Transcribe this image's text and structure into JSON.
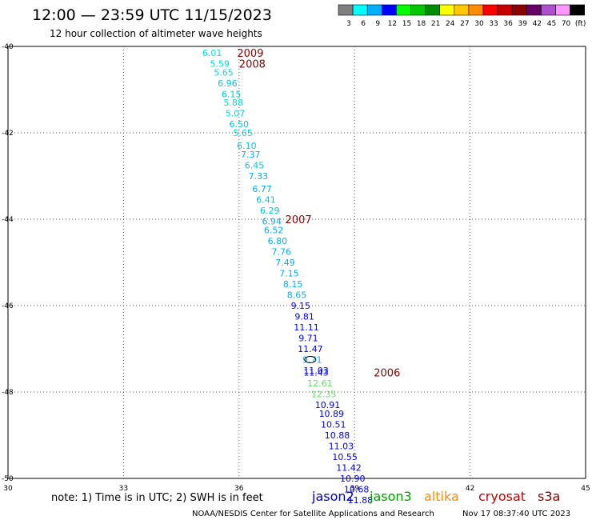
{
  "header": {
    "title": "12:00 — 23:59 UTC 11/15/2023",
    "subtitle": "12 hour collection of altimeter wave heights"
  },
  "colorbar": {
    "colors": [
      "#7f7f7f",
      "#00ffff",
      "#00b0ff",
      "#0000ff",
      "#00ff00",
      "#00c800",
      "#008c00",
      "#ffff00",
      "#ffc800",
      "#ff8c00",
      "#ff0000",
      "#c80000",
      "#8c0000",
      "#660066",
      "#b04ed0",
      "#ff96ff",
      "#000000"
    ],
    "labels": [
      "3",
      "6",
      "9",
      "12",
      "15",
      "18",
      "21",
      "24",
      "27",
      "30",
      "33",
      "36",
      "39",
      "42",
      "45",
      "70",
      "(ft)"
    ]
  },
  "footer": {
    "note": "note: 1) Time is in UTC; 2) SWH is in feet",
    "credit": "NOAA/NESDIS Center for Satellite Applications and Research",
    "generated": "Nov 17 08:37:40 UTC 2023"
  },
  "satellites": [
    {
      "name": "jason2",
      "color": "#0000c8"
    },
    {
      "name": "jason3",
      "color": "#00a000"
    },
    {
      "name": "altika",
      "color": "#ff8c00"
    },
    {
      "name": "cryosat",
      "color": "#c80000"
    },
    {
      "name": "s3a",
      "color": "#8c0000"
    }
  ],
  "chart_data": {
    "type": "scatter",
    "title": "12:00 — 23:59 UTC 11/15/2023",
    "xlim": [
      30,
      45
    ],
    "ylim": [
      -50,
      -40
    ],
    "x_ticks": [
      "30",
      "33",
      "36",
      "39",
      "42",
      "45"
    ],
    "y_ticks": [
      "-40",
      "-42",
      "-44",
      "-46",
      "-48",
      "-50"
    ],
    "grid": true,
    "units": "ft",
    "points": [
      {
        "lon": 35.3,
        "lat": -40.15,
        "value": "6.01",
        "color": "#00e0e0"
      },
      {
        "lon": 35.5,
        "lat": -40.4,
        "value": "5.59",
        "color": "#00e0e0"
      },
      {
        "lon": 35.6,
        "lat": -40.6,
        "value": "5.65",
        "color": "#00e0e0"
      },
      {
        "lon": 35.7,
        "lat": -40.85,
        "value": "6.96",
        "color": "#00c8e0"
      },
      {
        "lon": 35.8,
        "lat": -41.1,
        "value": "6.15",
        "color": "#00c8e0"
      },
      {
        "lon": 35.85,
        "lat": -41.3,
        "value": "5.88",
        "color": "#00e0e0"
      },
      {
        "lon": 35.9,
        "lat": -41.55,
        "value": "5.07",
        "color": "#00e0e0"
      },
      {
        "lon": 36.0,
        "lat": -41.8,
        "value": "6.50",
        "color": "#00c8e0"
      },
      {
        "lon": 36.1,
        "lat": -42.0,
        "value": "5.65",
        "color": "#00e0e0"
      },
      {
        "lon": 36.2,
        "lat": -42.3,
        "value": "6.10",
        "color": "#00c8e0"
      },
      {
        "lon": 36.3,
        "lat": -42.5,
        "value": "7.37",
        "color": "#00b0ff"
      },
      {
        "lon": 36.4,
        "lat": -42.75,
        "value": "6.45",
        "color": "#00c8e0"
      },
      {
        "lon": 36.5,
        "lat": -43.0,
        "value": "7.33",
        "color": "#00b0ff"
      },
      {
        "lon": 36.6,
        "lat": -43.3,
        "value": "6.77",
        "color": "#00b0ff"
      },
      {
        "lon": 36.7,
        "lat": -43.55,
        "value": "6.41",
        "color": "#00c8e0"
      },
      {
        "lon": 36.8,
        "lat": -43.8,
        "value": "6.29",
        "color": "#00c8e0"
      },
      {
        "lon": 36.85,
        "lat": -44.05,
        "value": "6.94",
        "color": "#00b0ff"
      },
      {
        "lon": 36.9,
        "lat": -44.25,
        "value": "6.52",
        "color": "#00b0ff"
      },
      {
        "lon": 37.0,
        "lat": -44.5,
        "value": "6.80",
        "color": "#00b0ff"
      },
      {
        "lon": 37.1,
        "lat": -44.75,
        "value": "7.76",
        "color": "#00b0ff"
      },
      {
        "lon": 37.2,
        "lat": -45.0,
        "value": "7.49",
        "color": "#00b0ff"
      },
      {
        "lon": 37.3,
        "lat": -45.25,
        "value": "7.15",
        "color": "#00b0ff"
      },
      {
        "lon": 37.4,
        "lat": -45.5,
        "value": "8.15",
        "color": "#00b0ff"
      },
      {
        "lon": 37.5,
        "lat": -45.75,
        "value": "8.65",
        "color": "#00b0ff"
      },
      {
        "lon": 37.6,
        "lat": -46.0,
        "value": "9.15",
        "color": "#0000ff"
      },
      {
        "lon": 37.7,
        "lat": -46.25,
        "value": "9.81",
        "color": "#0000ff"
      },
      {
        "lon": 37.75,
        "lat": -46.5,
        "value": "11.11",
        "color": "#0000ff"
      },
      {
        "lon": 37.8,
        "lat": -46.75,
        "value": "9.71",
        "color": "#0000ff"
      },
      {
        "lon": 37.85,
        "lat": -47.0,
        "value": "11.47",
        "color": "#0000ff"
      },
      {
        "lon": 37.9,
        "lat": -47.25,
        "value": "9.71",
        "color": "#00b0ff"
      },
      {
        "lon": 38.0,
        "lat": -47.5,
        "value": "11.03",
        "color": "#0000ff"
      },
      {
        "lon": 38.0,
        "lat": -47.55,
        "value": "11.43",
        "color": "#0000ff"
      },
      {
        "lon": 38.1,
        "lat": -47.8,
        "value": "12.61",
        "color": "#66e066"
      },
      {
        "lon": 38.2,
        "lat": -48.05,
        "value": "12.35",
        "color": "#66e066"
      },
      {
        "lon": 38.3,
        "lat": -48.3,
        "value": "10.91",
        "color": "#0000ff"
      },
      {
        "lon": 38.4,
        "lat": -48.5,
        "value": "10.89",
        "color": "#0000ff"
      },
      {
        "lon": 38.45,
        "lat": -48.75,
        "value": "10.51",
        "color": "#0000ff"
      },
      {
        "lon": 38.55,
        "lat": -49.0,
        "value": "10.88",
        "color": "#0000ff"
      },
      {
        "lon": 38.65,
        "lat": -49.25,
        "value": "11.03",
        "color": "#0000ff"
      },
      {
        "lon": 38.75,
        "lat": -49.5,
        "value": "10.55",
        "color": "#0000ff"
      },
      {
        "lon": 38.85,
        "lat": -49.75,
        "value": "11.42",
        "color": "#0000ff"
      },
      {
        "lon": 38.95,
        "lat": -50.0,
        "value": "10.90",
        "color": "#0000ff"
      },
      {
        "lon": 39.05,
        "lat": -50.25,
        "value": "10.68",
        "color": "#0000ff"
      },
      {
        "lon": 39.15,
        "lat": -50.5,
        "value": "11.88",
        "color": "#0000ff"
      }
    ],
    "time_labels": [
      {
        "lon": 35.95,
        "lat": -40.15,
        "text": "2009",
        "color": "#8c0000"
      },
      {
        "lon": 36.0,
        "lat": -40.4,
        "text": "2008",
        "color": "#8c0000"
      },
      {
        "lon": 37.2,
        "lat": -44.0,
        "text": "2007",
        "color": "#8c0000"
      },
      {
        "lon": 39.5,
        "lat": -47.55,
        "text": "2006",
        "color": "#8c0000"
      }
    ]
  }
}
